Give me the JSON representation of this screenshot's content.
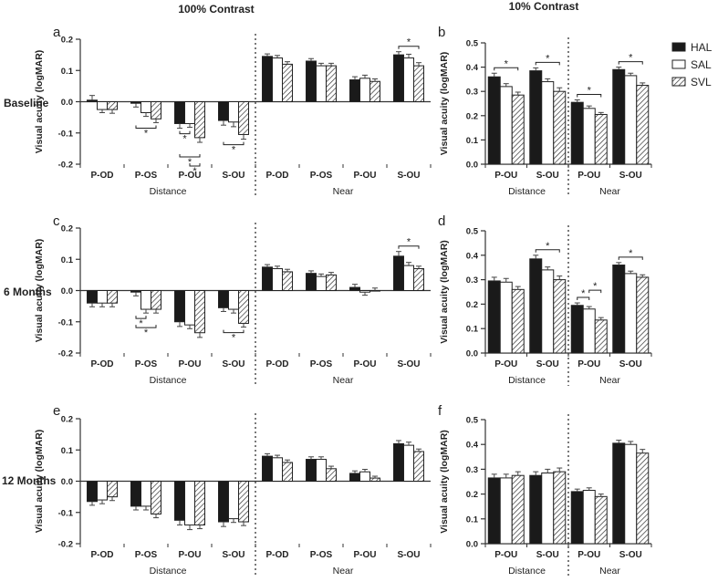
{
  "header": {
    "left": "100% Contrast",
    "right": "10% Contrast"
  },
  "row_labels": [
    "Baseline",
    "6 Months",
    "12 Months"
  ],
  "legend": [
    {
      "name": "HAL",
      "fill": "black"
    },
    {
      "name": "SAL",
      "fill": "white"
    },
    {
      "name": "SVL",
      "fill": "hatch"
    }
  ],
  "colors": {
    "bar_dark": "#1a1a1a",
    "axis": "#333333",
    "error": "#444444"
  },
  "chart_data": [
    {
      "panel": "a",
      "type": "bar",
      "ylabel": "Visual acuity (logMAR)",
      "ylim": [
        -0.2,
        0.2
      ],
      "yticks": [
        -0.2,
        -0.1,
        0.0,
        0.1,
        0.2
      ],
      "yticklabels": [
        "-0.2",
        "-0.1",
        "0.0",
        "0.1",
        "0.2"
      ],
      "categories": [
        "P-OD",
        "P-OS",
        "P-OU",
        "S-OU",
        "P-OD",
        "P-OS",
        "P-OU",
        "S-OU"
      ],
      "groups": [
        {
          "label": "Distance",
          "span": [
            0,
            3
          ]
        },
        {
          "label": "Near",
          "span": [
            4,
            7
          ]
        }
      ],
      "series": [
        {
          "name": "HAL",
          "values": [
            0.005,
            -0.005,
            -0.07,
            -0.06,
            0.145,
            0.13,
            0.07,
            0.15
          ],
          "err": [
            0.015,
            0.012,
            0.015,
            0.015,
            0.008,
            0.008,
            0.01,
            0.01
          ]
        },
        {
          "name": "SAL",
          "values": [
            -0.025,
            -0.035,
            -0.07,
            -0.065,
            0.14,
            0.115,
            0.075,
            0.14
          ],
          "err": [
            0.01,
            0.012,
            0.012,
            0.015,
            0.008,
            0.008,
            0.01,
            0.012
          ]
        },
        {
          "name": "SVL",
          "values": [
            -0.025,
            -0.055,
            -0.115,
            -0.105,
            0.12,
            0.115,
            0.065,
            0.115
          ],
          "err": [
            0.012,
            0.012,
            0.015,
            0.015,
            0.008,
            0.008,
            0.008,
            0.01
          ]
        }
      ],
      "significance": [
        {
          "group": 1,
          "from": 0,
          "to": 2,
          "label": "*"
        },
        {
          "group": 2,
          "from": 0,
          "to": 1,
          "label": "*"
        },
        {
          "group": 2,
          "from": 0,
          "to": 2,
          "label": "*"
        },
        {
          "group": 2,
          "from": 1,
          "to": 2,
          "label": "*"
        },
        {
          "group": 3,
          "from": 0,
          "to": 2,
          "label": "*"
        },
        {
          "group": 7,
          "from": 0,
          "to": 2,
          "label": "*"
        }
      ]
    },
    {
      "panel": "b",
      "type": "bar",
      "ylabel": "Visual acuity (logMAR)",
      "ylim": [
        0.0,
        0.5
      ],
      "yticks": [
        0.0,
        0.1,
        0.2,
        0.3,
        0.4,
        0.5
      ],
      "yticklabels": [
        "0.0",
        "0.1",
        "0.2",
        "0.3",
        "0.4",
        "0.5"
      ],
      "categories": [
        "P-OU",
        "S-OU",
        "P-OU",
        "S-OU"
      ],
      "groups": [
        {
          "label": "Distance",
          "span": [
            0,
            1
          ]
        },
        {
          "label": "Near",
          "span": [
            2,
            3
          ]
        }
      ],
      "series": [
        {
          "name": "HAL",
          "values": [
            0.36,
            0.385,
            0.255,
            0.39
          ],
          "err": [
            0.015,
            0.012,
            0.01,
            0.01
          ]
        },
        {
          "name": "SAL",
          "values": [
            0.32,
            0.34,
            0.23,
            0.365
          ],
          "err": [
            0.012,
            0.012,
            0.01,
            0.01
          ]
        },
        {
          "name": "SVL",
          "values": [
            0.285,
            0.3,
            0.205,
            0.325
          ],
          "err": [
            0.012,
            0.015,
            0.008,
            0.01
          ]
        }
      ],
      "significance": [
        {
          "group": 0,
          "from": 0,
          "to": 2,
          "label": "*"
        },
        {
          "group": 1,
          "from": 0,
          "to": 2,
          "label": "*"
        },
        {
          "group": 2,
          "from": 0,
          "to": 2,
          "label": "*"
        },
        {
          "group": 3,
          "from": 0,
          "to": 2,
          "label": "*"
        }
      ]
    },
    {
      "panel": "c",
      "type": "bar",
      "ylabel": "Visual acuity (logMAR)",
      "ylim": [
        -0.2,
        0.2
      ],
      "yticks": [
        -0.2,
        -0.1,
        0.0,
        0.1,
        0.2
      ],
      "yticklabels": [
        "-0.2",
        "-0.1",
        "0.0",
        "0.1",
        "0.2"
      ],
      "categories": [
        "P-OD",
        "P-OS",
        "P-OU",
        "S-OU",
        "P-OD",
        "P-OS",
        "P-OU",
        "S-OU"
      ],
      "groups": [
        {
          "label": "Distance",
          "span": [
            0,
            3
          ]
        },
        {
          "label": "Near",
          "span": [
            4,
            7
          ]
        }
      ],
      "series": [
        {
          "name": "HAL",
          "values": [
            -0.04,
            -0.005,
            -0.1,
            -0.055,
            0.075,
            0.055,
            0.01,
            0.11
          ],
          "err": [
            0.012,
            0.012,
            0.015,
            0.012,
            0.008,
            0.008,
            0.01,
            0.015
          ]
        },
        {
          "name": "SAL",
          "values": [
            -0.04,
            -0.06,
            -0.11,
            -0.06,
            0.07,
            0.045,
            -0.005,
            0.08
          ],
          "err": [
            0.012,
            0.012,
            0.012,
            0.012,
            0.008,
            0.008,
            0.01,
            0.01
          ]
        },
        {
          "name": "SVL",
          "values": [
            -0.04,
            -0.06,
            -0.135,
            -0.105,
            0.06,
            0.05,
            0.0,
            0.07
          ],
          "err": [
            0.012,
            0.012,
            0.015,
            0.012,
            0.008,
            0.008,
            0.008,
            0.008
          ]
        }
      ],
      "significance": [
        {
          "group": 1,
          "from": 0,
          "to": 1,
          "label": "*"
        },
        {
          "group": 1,
          "from": 0,
          "to": 2,
          "label": "*"
        },
        {
          "group": 3,
          "from": 0,
          "to": 2,
          "label": "*"
        },
        {
          "group": 7,
          "from": 0,
          "to": 2,
          "label": "*"
        }
      ]
    },
    {
      "panel": "d",
      "type": "bar",
      "ylabel": "Visual acuity (logMAR)",
      "ylim": [
        0.0,
        0.5
      ],
      "yticks": [
        0.0,
        0.1,
        0.2,
        0.3,
        0.4,
        0.5
      ],
      "yticklabels": [
        "0.0",
        "0.1",
        "0.2",
        "0.3",
        "0.4",
        "0.5"
      ],
      "categories": [
        "P-OU",
        "S-OU",
        "P-OU",
        "S-OU"
      ],
      "groups": [
        {
          "label": "Distance",
          "span": [
            0,
            1
          ]
        },
        {
          "label": "Near",
          "span": [
            2,
            3
          ]
        }
      ],
      "series": [
        {
          "name": "HAL",
          "values": [
            0.295,
            0.385,
            0.195,
            0.36
          ],
          "err": [
            0.015,
            0.015,
            0.01,
            0.01
          ]
        },
        {
          "name": "SAL",
          "values": [
            0.29,
            0.34,
            0.18,
            0.325
          ],
          "err": [
            0.015,
            0.012,
            0.01,
            0.01
          ]
        },
        {
          "name": "SVL",
          "values": [
            0.26,
            0.3,
            0.135,
            0.31
          ],
          "err": [
            0.012,
            0.015,
            0.01,
            0.01
          ]
        }
      ],
      "significance": [
        {
          "group": 1,
          "from": 0,
          "to": 2,
          "label": "*"
        },
        {
          "group": 2,
          "from": 0,
          "to": 1,
          "label": "*"
        },
        {
          "group": 2,
          "from": 1,
          "to": 2,
          "label": "*"
        },
        {
          "group": 3,
          "from": 0,
          "to": 2,
          "label": "*"
        }
      ]
    },
    {
      "panel": "e",
      "type": "bar",
      "ylabel": "Visual acuity (logMAR)",
      "ylim": [
        -0.2,
        0.2
      ],
      "yticks": [
        -0.2,
        -0.1,
        0.0,
        0.1,
        0.2
      ],
      "yticklabels": [
        "-0.2",
        "-0.1",
        "0.0",
        "0.1",
        "0.2"
      ],
      "categories": [
        "P-OD",
        "P-OS",
        "P-OU",
        "S-OU",
        "P-OD",
        "P-OS",
        "P-OU",
        "S-OU"
      ],
      "groups": [
        {
          "label": "Distance",
          "span": [
            0,
            3
          ]
        },
        {
          "label": "Near",
          "span": [
            4,
            7
          ]
        }
      ],
      "series": [
        {
          "name": "HAL",
          "values": [
            -0.065,
            -0.08,
            -0.125,
            -0.13,
            0.08,
            0.07,
            0.025,
            0.12
          ],
          "err": [
            0.012,
            0.012,
            0.015,
            0.015,
            0.008,
            0.008,
            0.008,
            0.01
          ]
        },
        {
          "name": "SAL",
          "values": [
            -0.06,
            -0.08,
            -0.14,
            -0.12,
            0.075,
            0.07,
            0.03,
            0.115
          ],
          "err": [
            0.012,
            0.012,
            0.015,
            0.012,
            0.008,
            0.008,
            0.008,
            0.01
          ]
        },
        {
          "name": "SVL",
          "values": [
            -0.05,
            -0.105,
            -0.14,
            -0.13,
            0.06,
            0.04,
            0.01,
            0.095
          ],
          "err": [
            0.012,
            0.012,
            0.012,
            0.012,
            0.008,
            0.008,
            0.006,
            0.008
          ]
        }
      ],
      "significance": []
    },
    {
      "panel": "f",
      "type": "bar",
      "ylabel": "Visual acuity (logMAR)",
      "ylim": [
        0.0,
        0.5
      ],
      "yticks": [
        0.0,
        0.1,
        0.2,
        0.3,
        0.4,
        0.5
      ],
      "yticklabels": [
        "0.0",
        "0.1",
        "0.2",
        "0.3",
        "0.4",
        "0.5"
      ],
      "categories": [
        "P-OU",
        "S-OU",
        "P-OU",
        "S-OU"
      ],
      "groups": [
        {
          "label": "Distance",
          "span": [
            0,
            1
          ]
        },
        {
          "label": "Near",
          "span": [
            2,
            3
          ]
        }
      ],
      "series": [
        {
          "name": "HAL",
          "values": [
            0.265,
            0.275,
            0.21,
            0.405
          ],
          "err": [
            0.015,
            0.015,
            0.01,
            0.012
          ]
        },
        {
          "name": "SAL",
          "values": [
            0.265,
            0.285,
            0.215,
            0.4
          ],
          "err": [
            0.015,
            0.015,
            0.01,
            0.012
          ]
        },
        {
          "name": "SVL",
          "values": [
            0.275,
            0.29,
            0.19,
            0.365
          ],
          "err": [
            0.015,
            0.015,
            0.01,
            0.015
          ]
        }
      ],
      "significance": []
    }
  ]
}
